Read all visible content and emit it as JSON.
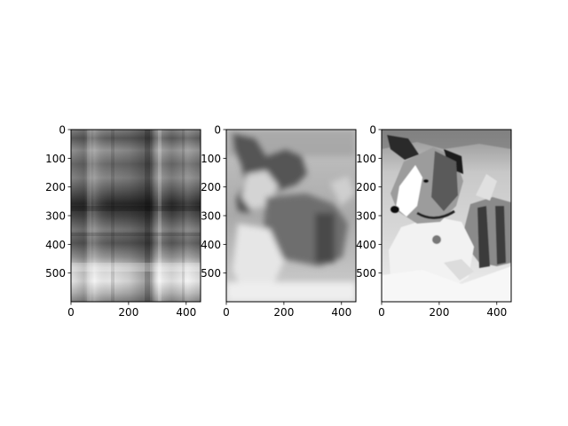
{
  "chart_data": [
    {
      "type": "heatmap",
      "colormap": "gray",
      "image_shape": [
        600,
        450
      ],
      "content": "grayscale image reconstruction with very few singular values: only broad horizontal and vertical bands of light and dark",
      "x_ticks": [
        0,
        200,
        400
      ],
      "y_ticks": [
        0,
        100,
        200,
        300,
        400,
        500
      ],
      "xlim": [
        0,
        450
      ],
      "ylim": [
        600,
        0
      ]
    },
    {
      "type": "heatmap",
      "colormap": "gray",
      "image_shape": [
        600,
        450
      ],
      "content": "blurry blocky grayscale reconstruction of a dog, outline recognizable",
      "x_ticks": [
        0,
        200,
        400
      ],
      "y_ticks": [
        0,
        100,
        200,
        300,
        400,
        500
      ],
      "xlim": [
        0,
        450
      ],
      "ylim": [
        600,
        0
      ]
    },
    {
      "type": "heatmap",
      "colormap": "gray",
      "image_shape": [
        600,
        450
      ],
      "content": "sharp grayscale photo of a dog lying in snow, head turned left, collar with tag",
      "x_ticks": [
        0,
        200,
        400
      ],
      "y_ticks": [
        0,
        100,
        200,
        300,
        400,
        500
      ],
      "xlim": [
        0,
        450
      ],
      "ylim": [
        600,
        0
      ]
    }
  ]
}
